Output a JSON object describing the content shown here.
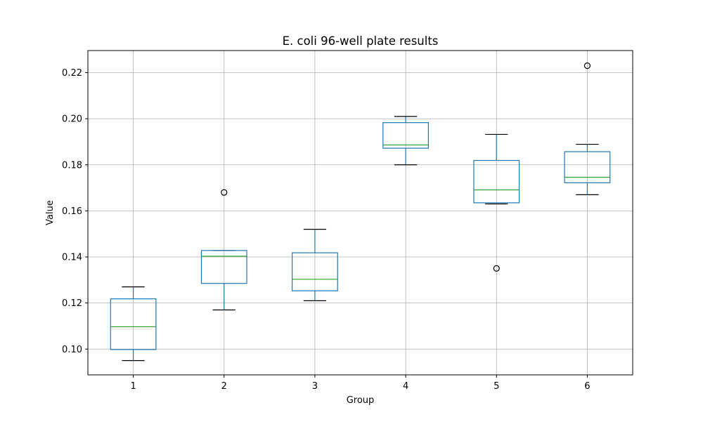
{
  "chart_data": {
    "type": "box",
    "title": "E. coli 96-well plate results",
    "xlabel": "Group",
    "ylabel": "Value",
    "ylim": [
      0.0888,
      0.2296
    ],
    "yticks": [
      0.1,
      0.12,
      0.14,
      0.16,
      0.18,
      0.2,
      0.22
    ],
    "ytick_labels": [
      "0.10",
      "0.12",
      "0.14",
      "0.16",
      "0.18",
      "0.20",
      "0.22"
    ],
    "grid": true,
    "categories": [
      "1",
      "2",
      "3",
      "4",
      "5",
      "6"
    ],
    "boxes": [
      {
        "group": "1",
        "whisker_low": 0.095,
        "q1": 0.0998,
        "median": 0.1097,
        "q3": 0.1218,
        "whisker_high": 0.127,
        "fliers": []
      },
      {
        "group": "2",
        "whisker_low": 0.117,
        "q1": 0.1285,
        "median": 0.1403,
        "q3": 0.1428,
        "whisker_high": 0.1428,
        "fliers": [
          0.168
        ]
      },
      {
        "group": "3",
        "whisker_low": 0.121,
        "q1": 0.1253,
        "median": 0.1303,
        "q3": 0.1418,
        "whisker_high": 0.152,
        "fliers": []
      },
      {
        "group": "4",
        "whisker_low": 0.18,
        "q1": 0.1872,
        "median": 0.1886,
        "q3": 0.1983,
        "whisker_high": 0.201,
        "fliers": []
      },
      {
        "group": "5",
        "whisker_low": 0.163,
        "q1": 0.1635,
        "median": 0.1691,
        "q3": 0.1819,
        "whisker_high": 0.1932,
        "fliers": [
          0.135
        ]
      },
      {
        "group": "6",
        "whisker_low": 0.167,
        "q1": 0.1722,
        "median": 0.1746,
        "q3": 0.1857,
        "whisker_high": 0.1889,
        "fliers": [
          0.223
        ]
      }
    ],
    "colors": {
      "box": "#1f77b4",
      "median": "#2ca02c",
      "whisker": "#1f77b4",
      "cap": "#000000",
      "flier": "#000000",
      "grid": "#b0b0b0"
    }
  }
}
